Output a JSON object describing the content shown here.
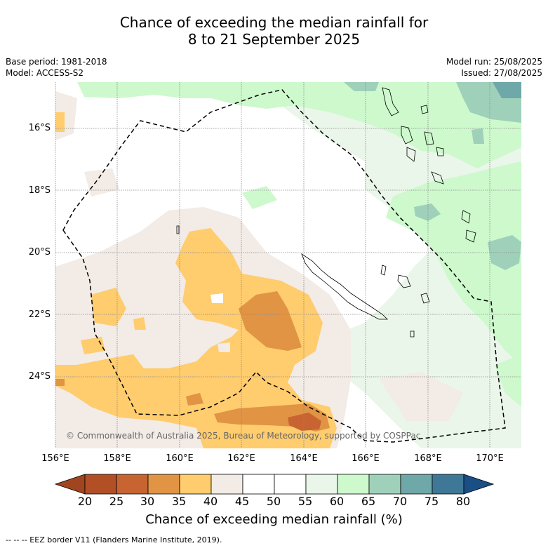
{
  "title_line1": "Chance of exceeding the median rainfall for",
  "title_line2": "8 to 21 September 2025",
  "base_period": "Base period: 1981-2018",
  "model": "Model: ACCESS-S2",
  "model_run": "Model run: 25/08/2025",
  "issued": "Issued: 27/08/2025",
  "copyright": "© Commonwealth of Australia 2025, Bureau of Meteorology, supported by COSPPac",
  "lat_labels": [
    "16°S",
    "18°S",
    "20°S",
    "22°S",
    "24°S"
  ],
  "lon_labels": [
    "156°E",
    "158°E",
    "160°E",
    "162°E",
    "164°E",
    "166°E",
    "168°E",
    "170°E"
  ],
  "colorbar": {
    "ticks": [
      "20",
      "25",
      "30",
      "35",
      "40",
      "45",
      "50",
      "55",
      "60",
      "65",
      "70",
      "75",
      "80"
    ],
    "colors": [
      "#a0451f",
      "#b34f25",
      "#c86432",
      "#e09444",
      "#ffcc6e",
      "#f2ebe6",
      "#ffffff",
      "#ffffff",
      "#eaf6e9",
      "#cdf9cd",
      "#9fd1ba",
      "#6fa8a8",
      "#3e7896",
      "#1a4f85"
    ],
    "label": "Chance of exceeding median rainfall (%)"
  },
  "footer": "--  --  -- EEZ border V11 (Flanders Marine Institute, 2019)."
}
